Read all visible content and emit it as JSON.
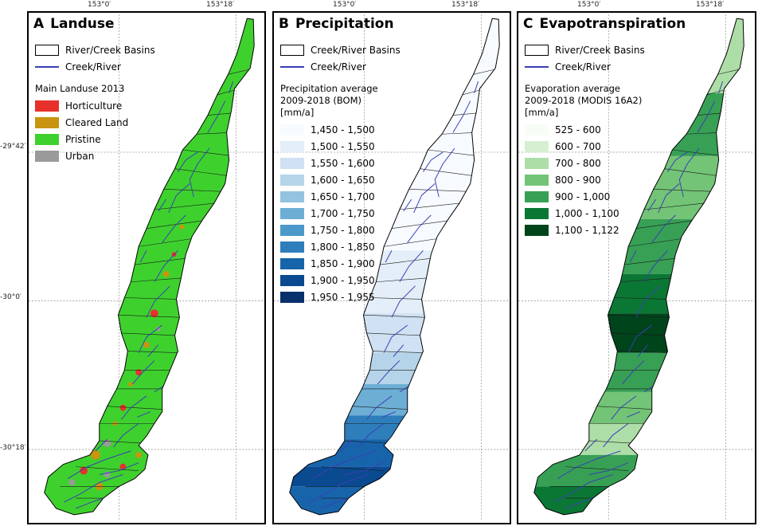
{
  "graticule": {
    "lon_labels": [
      "153°0′",
      "153°18′"
    ],
    "lat_labels": [
      "-29°42′",
      "-30°0′",
      "-30°18′"
    ]
  },
  "panels": [
    {
      "letter": "A",
      "title": "Landuse",
      "legend_common": [
        {
          "label": "River/Creek Basins",
          "symbol": "polygon-outline"
        },
        {
          "label": "Creek/River",
          "symbol": "line",
          "color": "#3a3fb6"
        }
      ],
      "class_title": "Main Landuse 2013",
      "classes": [
        {
          "label": "Horticulture",
          "color": "#e8312b"
        },
        {
          "label": "Cleared Land",
          "color": "#c9940f"
        },
        {
          "label": "Pristine",
          "color": "#3ed12e"
        },
        {
          "label": "Urban",
          "color": "#9a9a9a"
        }
      ]
    },
    {
      "letter": "B",
      "title": "Precipitation",
      "legend_common": [
        {
          "label": "Creek/River Basins",
          "symbol": "polygon-outline"
        },
        {
          "label": "Creek/River",
          "symbol": "line",
          "color": "#3a3fb6"
        }
      ],
      "class_title": "Precipitation average\n2009-2018 (BOM)\n[mm/a]",
      "classes": [
        {
          "label": "1,450 - 1,500",
          "color": "#f7fbff"
        },
        {
          "label": "1,500 - 1,550",
          "color": "#e3eef9"
        },
        {
          "label": "1,550 - 1,600",
          "color": "#cfe1f2"
        },
        {
          "label": "1,600 - 1,650",
          "color": "#b5d4e9"
        },
        {
          "label": "1,650 - 1,700",
          "color": "#93c3df"
        },
        {
          "label": "1,700 - 1,750",
          "color": "#6daed5"
        },
        {
          "label": "1,750 - 1,800",
          "color": "#4b98ca"
        },
        {
          "label": "1,800 - 1,850",
          "color": "#2e7ebc"
        },
        {
          "label": "1,850 - 1,900",
          "color": "#1764ab"
        },
        {
          "label": "1,900 - 1,950",
          "color": "#0a4a90"
        },
        {
          "label": "1,950 - 1,955",
          "color": "#08306b"
        }
      ]
    },
    {
      "letter": "C",
      "title": "Evapotranspiration",
      "legend_common": [
        {
          "label": "River/Creek Basins",
          "symbol": "polygon-outline"
        },
        {
          "label": "Creek/River",
          "symbol": "line",
          "color": "#3a3fb6"
        }
      ],
      "class_title": "Evaporation average\n2009-2018 (MODIS 16A2)\n[mm/a]",
      "classes": [
        {
          "label": "525 - 600",
          "color": "#f7fcf5"
        },
        {
          "label": "600 - 700",
          "color": "#d7efd1"
        },
        {
          "label": "700 - 800",
          "color": "#aedea7"
        },
        {
          "label": "800 - 900",
          "color": "#73c476"
        },
        {
          "label": "900 - 1,000",
          "color": "#37a055"
        },
        {
          "label": "1,000 - 1,100",
          "color": "#0b7734"
        },
        {
          "label": "1,100 - 1,122",
          "color": "#00441b"
        }
      ]
    }
  ]
}
